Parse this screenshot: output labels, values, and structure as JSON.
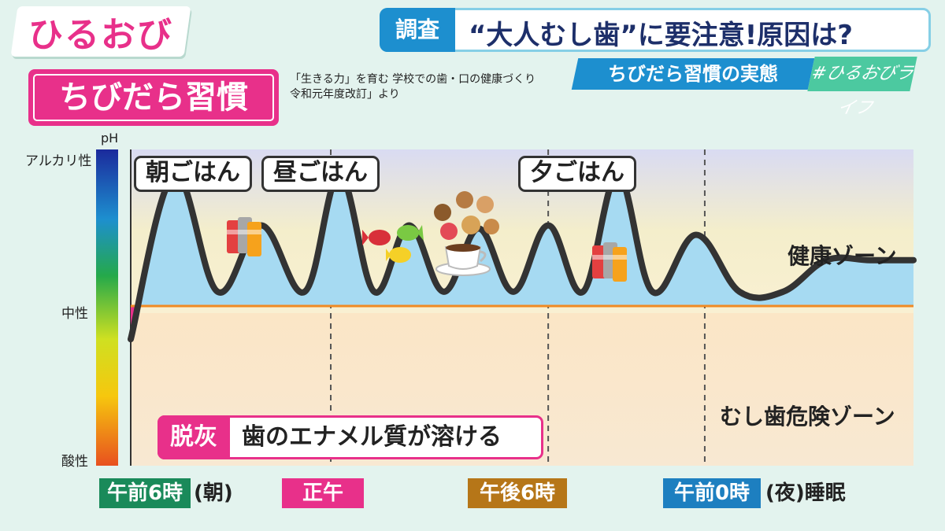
{
  "logo": "ひるおび",
  "headline": {
    "tag": "調査",
    "text": "“大人むし歯”に要注意!原因は?"
  },
  "subhead": "ちびだら習慣の実態",
  "hashtag": "#ひるおびライフ",
  "chart_title": "ちびだら習慣",
  "source_text": "「生きる力」を育む 学校での歯・口の健康づくり\n令和元年度改訂」より",
  "colors": {
    "pink": "#e8308a",
    "blue_fill": "#a6daf2",
    "orange_line": "#f08a24",
    "line": "#333333"
  },
  "chart_data": {
    "type": "line",
    "title": "ちびだら習慣",
    "ylabel": "pH",
    "y_ticks": [
      "アルカリ性",
      "中性",
      "酸性"
    ],
    "x_time_labels": [
      {
        "label": "午前6時",
        "suffix": "(朝)",
        "color": "#1a8a5a"
      },
      {
        "label": "正午",
        "suffix": "",
        "color": "#e8308a"
      },
      {
        "label": "午後6時",
        "suffix": "",
        "color": "#b67618"
      },
      {
        "label": "午前0時",
        "suffix": "(夜)睡眠",
        "color": "#1d7fc0"
      }
    ],
    "zones": [
      "健康ゾーン",
      "むし歯危険ゾーン"
    ],
    "meal_labels": [
      "朝ごはん",
      "昼ごはん",
      "夕ごはん"
    ],
    "demineralization": {
      "tag": "脱灰",
      "text": "歯のエナメル質が溶ける"
    },
    "series": [
      {
        "x": [
          0,
          0.5,
          1,
          1.5,
          2,
          2.4,
          2.8,
          3.2,
          3.6,
          4,
          4.4,
          4.8,
          5.2,
          5.6,
          6,
          6.5,
          7,
          7.5,
          8,
          8.5,
          9
        ],
        "y": [
          4,
          9.2,
          5.5,
          7.6,
          5.5,
          9.2,
          5.5,
          7.6,
          5.5,
          7.5,
          5.5,
          7.6,
          5.5,
          9.2,
          5.5,
          7.3,
          5.5,
          5.5,
          6.5,
          6.5,
          6.5
        ]
      }
    ]
  },
  "food_icons": [
    "drink-cans-icon",
    "candy-icon",
    "cookies-icon",
    "coffee-cup-icon",
    "drink-cans-icon"
  ]
}
